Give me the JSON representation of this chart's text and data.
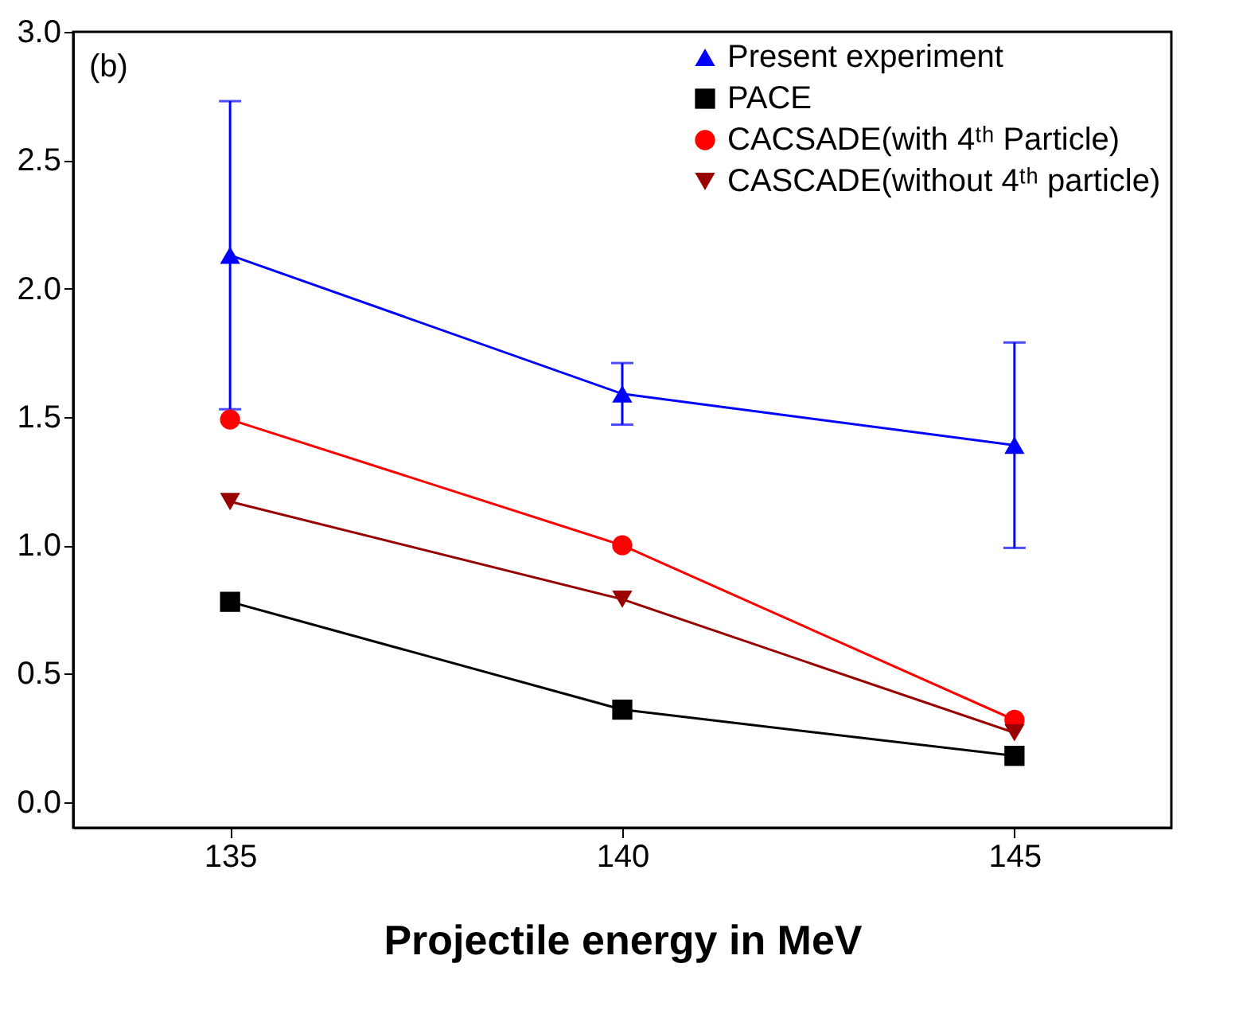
{
  "chart_data": {
    "type": "line",
    "xlabel": "Projectile energy in MeV",
    "annotations": [
      "(b)"
    ],
    "x": [
      135,
      140,
      145
    ],
    "series": [
      {
        "name": "Present experiment",
        "color": "#0000ff",
        "marker": "triangle",
        "values": [
          2.13,
          1.59,
          1.39
        ],
        "errors": [
          0.6,
          0.12,
          0.4
        ]
      },
      {
        "name": "PACE",
        "color": "#000000",
        "marker": "square",
        "values": [
          0.78,
          0.36,
          0.18
        ]
      },
      {
        "name": "CACSADE(with 4ᵗʰ Particle)",
        "color": "#ff0000",
        "marker": "circle",
        "values": [
          1.49,
          1.0,
          0.32
        ]
      },
      {
        "name": "CASCADE(without 4ᵗʰ particle)",
        "color": "#990000",
        "marker": "triangle-down",
        "values": [
          1.17,
          0.79,
          0.27
        ]
      }
    ],
    "xlim": [
      133,
      147
    ],
    "xticks": [
      135,
      140,
      145
    ],
    "ylim": [
      -0.1,
      3.0
    ],
    "yticks": [
      {
        "value": 0,
        "label": "0.0"
      },
      0.5,
      {
        "value": 1,
        "label": "1.0"
      },
      1.5,
      {
        "value": 2,
        "label": "2.0"
      },
      2.5,
      {
        "value": 3,
        "label": "3.0"
      }
    ],
    "legend": "top right",
    "grid": false,
    "line_style": "solid"
  }
}
